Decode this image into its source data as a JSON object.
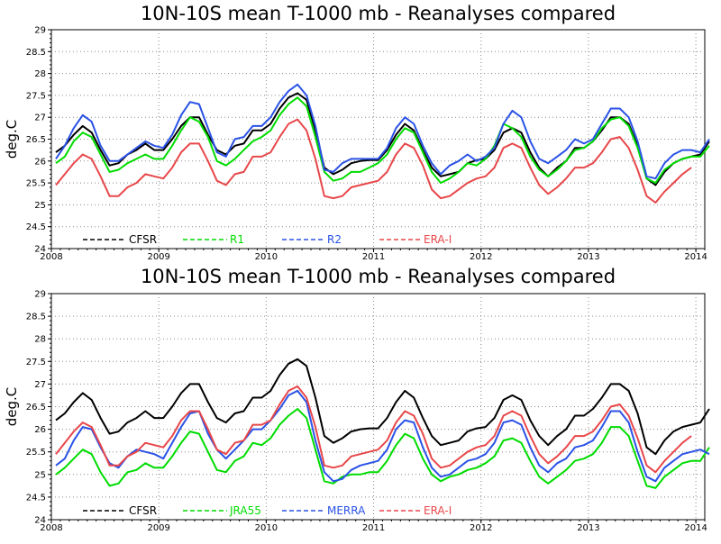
{
  "chart_data": [
    {
      "type": "line",
      "title": "10N-10S mean T-1000 mb - Reanalyses compared",
      "ylabel": "deg.C",
      "xlabel": "",
      "xlim": [
        2008,
        2014.083
      ],
      "ylim": [
        24,
        29
      ],
      "xticks": [
        "2008",
        "2009",
        "2010",
        "2011",
        "2012",
        "2013",
        "2014"
      ],
      "yticks": [
        "24",
        "24.5",
        "25",
        "25.5",
        "26",
        "26.5",
        "27",
        "27.5",
        "28",
        "28.5",
        "29"
      ],
      "grid": true,
      "legend_position": "bottom-left",
      "series": [
        {
          "name": "CFSR",
          "color": "#000000",
          "values": [
            26.2,
            26.35,
            26.6,
            26.8,
            26.65,
            26.25,
            25.9,
            25.95,
            26.15,
            26.25,
            26.4,
            26.25,
            26.25,
            26.5,
            26.8,
            27.0,
            27.0,
            26.6,
            26.25,
            26.15,
            26.35,
            26.4,
            26.7,
            26.7,
            26.85,
            27.2,
            27.45,
            27.55,
            27.4,
            26.7,
            25.85,
            25.7,
            25.8,
            25.95,
            26.0,
            26.02,
            26.02,
            26.25,
            26.6,
            26.85,
            26.7,
            26.25,
            25.85,
            25.65,
            25.7,
            25.75,
            25.95,
            26.02,
            26.05,
            26.25,
            26.65,
            26.75,
            26.65,
            26.2,
            25.85,
            25.65,
            25.85,
            26.0,
            26.3,
            26.3,
            26.45,
            26.7,
            27.0,
            27.0,
            26.85,
            26.35,
            25.6,
            25.45,
            25.75,
            25.95,
            26.05,
            26.1,
            26.15,
            26.45
          ]
        },
        {
          "name": "R1",
          "color": "#00dc00",
          "values": [
            25.95,
            26.1,
            26.45,
            26.65,
            26.55,
            26.15,
            25.75,
            25.8,
            25.95,
            26.05,
            26.15,
            26.05,
            26.05,
            26.35,
            26.7,
            27.0,
            26.9,
            26.55,
            26.0,
            25.9,
            26.05,
            26.25,
            26.45,
            26.55,
            26.7,
            27.05,
            27.3,
            27.45,
            27.25,
            26.55,
            25.75,
            25.55,
            25.6,
            25.75,
            25.75,
            25.85,
            25.95,
            26.15,
            26.5,
            26.75,
            26.65,
            26.2,
            25.75,
            25.5,
            25.6,
            25.75,
            25.95,
            25.9,
            26.05,
            26.35,
            26.85,
            26.75,
            26.55,
            26.1,
            25.8,
            25.65,
            25.8,
            26.0,
            26.25,
            26.3,
            26.45,
            26.75,
            26.95,
            27.0,
            26.8,
            26.3,
            25.6,
            25.5,
            25.8,
            25.95,
            26.05,
            26.1,
            26.1,
            26.35
          ]
        },
        {
          "name": "R2",
          "color": "#2a52e6",
          "values": [
            26.05,
            26.35,
            26.75,
            27.05,
            26.9,
            26.35,
            26.0,
            26.0,
            26.15,
            26.3,
            26.45,
            26.35,
            26.3,
            26.6,
            27.05,
            27.35,
            27.3,
            26.75,
            26.2,
            26.1,
            26.5,
            26.55,
            26.8,
            26.8,
            27.0,
            27.35,
            27.6,
            27.75,
            27.5,
            26.8,
            25.8,
            25.75,
            25.95,
            26.05,
            26.05,
            26.05,
            26.05,
            26.3,
            26.75,
            27.0,
            26.85,
            26.35,
            25.95,
            25.7,
            25.9,
            26.0,
            26.15,
            26.0,
            26.1,
            26.3,
            26.85,
            27.15,
            27.0,
            26.45,
            26.05,
            25.95,
            26.1,
            26.25,
            26.5,
            26.4,
            26.5,
            26.85,
            27.2,
            27.2,
            27.0,
            26.45,
            25.65,
            25.6,
            25.95,
            26.15,
            26.25,
            26.25,
            26.2,
            26.5
          ]
        },
        {
          "name": "ERA-I",
          "color": "#e8474a",
          "values": [
            25.45,
            25.7,
            25.95,
            26.15,
            26.05,
            25.65,
            25.2,
            25.2,
            25.4,
            25.5,
            25.7,
            25.65,
            25.6,
            25.85,
            26.2,
            26.4,
            26.4,
            26.0,
            25.55,
            25.45,
            25.7,
            25.75,
            26.1,
            26.1,
            26.2,
            26.55,
            26.85,
            26.95,
            26.7,
            26.05,
            25.2,
            25.15,
            25.2,
            25.4,
            25.45,
            25.5,
            25.55,
            25.75,
            26.15,
            26.4,
            26.3,
            25.9,
            25.35,
            25.15,
            25.2,
            25.35,
            25.5,
            25.6,
            25.65,
            25.85,
            26.3,
            26.4,
            26.3,
            25.85,
            25.45,
            25.25,
            25.4,
            25.6,
            25.85,
            25.85,
            25.95,
            26.2,
            26.5,
            26.55,
            26.3,
            25.8,
            25.2,
            25.05,
            25.3,
            25.5,
            25.7,
            25.85
          ]
        }
      ]
    },
    {
      "type": "line",
      "title": "10N-10S mean T-1000 mb - Reanalyses compared",
      "ylabel": "deg.C",
      "xlabel": "",
      "xlim": [
        2008,
        2014.083
      ],
      "ylim": [
        24,
        29
      ],
      "xticks": [
        "2008",
        "2009",
        "2010",
        "2011",
        "2012",
        "2013",
        "2014"
      ],
      "yticks": [
        "24",
        "24.5",
        "25",
        "25.5",
        "26",
        "26.5",
        "27",
        "27.5",
        "28",
        "28.5",
        "29"
      ],
      "grid": true,
      "legend_position": "bottom-left",
      "series": [
        {
          "name": "CFSR",
          "color": "#000000",
          "values": [
            26.2,
            26.35,
            26.6,
            26.8,
            26.65,
            26.25,
            25.9,
            25.95,
            26.15,
            26.25,
            26.4,
            26.25,
            26.25,
            26.5,
            26.8,
            27.0,
            27.0,
            26.6,
            26.25,
            26.15,
            26.35,
            26.4,
            26.7,
            26.7,
            26.85,
            27.2,
            27.45,
            27.55,
            27.4,
            26.7,
            25.85,
            25.7,
            25.8,
            25.95,
            26.0,
            26.02,
            26.02,
            26.25,
            26.6,
            26.85,
            26.7,
            26.25,
            25.85,
            25.65,
            25.7,
            25.75,
            25.95,
            26.02,
            26.05,
            26.25,
            26.65,
            26.75,
            26.65,
            26.2,
            25.85,
            25.65,
            25.85,
            26.0,
            26.3,
            26.3,
            26.45,
            26.7,
            27.0,
            27.0,
            26.85,
            26.35,
            25.6,
            25.45,
            25.75,
            25.95,
            26.05,
            26.1,
            26.15,
            26.45
          ]
        },
        {
          "name": "JRA55",
          "color": "#00dc00",
          "values": [
            25.0,
            25.15,
            25.35,
            25.55,
            25.45,
            25.05,
            24.75,
            24.8,
            25.05,
            25.1,
            25.25,
            25.15,
            25.15,
            25.4,
            25.7,
            25.95,
            25.9,
            25.5,
            25.1,
            25.05,
            25.3,
            25.4,
            25.7,
            25.65,
            25.8,
            26.1,
            26.3,
            26.45,
            26.25,
            25.55,
            24.85,
            24.8,
            24.95,
            25.0,
            25.0,
            25.05,
            25.05,
            25.3,
            25.65,
            25.9,
            25.8,
            25.35,
            25.0,
            24.85,
            24.95,
            25.0,
            25.1,
            25.15,
            25.25,
            25.4,
            25.75,
            25.8,
            25.7,
            25.3,
            24.95,
            24.8,
            24.95,
            25.1,
            25.3,
            25.35,
            25.45,
            25.7,
            26.05,
            26.05,
            25.85,
            25.3,
            24.75,
            24.7,
            24.95,
            25.1,
            25.25,
            25.3,
            25.3,
            25.6
          ]
        },
        {
          "name": "MERRA",
          "color": "#2a52e6",
          "values": [
            25.2,
            25.35,
            25.75,
            26.05,
            26.0,
            25.6,
            25.25,
            25.15,
            25.4,
            25.55,
            25.5,
            25.45,
            25.35,
            25.7,
            26.05,
            26.35,
            26.4,
            25.9,
            25.55,
            25.35,
            25.55,
            25.75,
            26.0,
            26.0,
            26.2,
            26.45,
            26.75,
            26.85,
            26.6,
            25.75,
            25.05,
            24.85,
            24.9,
            25.1,
            25.2,
            25.25,
            25.3,
            25.55,
            26.0,
            26.2,
            26.15,
            25.6,
            25.15,
            24.95,
            25.0,
            25.15,
            25.3,
            25.35,
            25.45,
            25.7,
            26.15,
            26.2,
            26.1,
            25.6,
            25.2,
            25.05,
            25.25,
            25.35,
            25.6,
            25.65,
            25.75,
            26.05,
            26.4,
            26.4,
            26.15,
            25.5,
            24.95,
            24.85,
            25.15,
            25.3,
            25.45,
            25.5,
            25.55,
            25.45
          ]
        },
        {
          "name": "ERA-I",
          "color": "#e8474a",
          "values": [
            25.45,
            25.7,
            25.95,
            26.15,
            26.05,
            25.65,
            25.2,
            25.2,
            25.4,
            25.5,
            25.7,
            25.65,
            25.6,
            25.85,
            26.2,
            26.4,
            26.4,
            26.0,
            25.55,
            25.45,
            25.7,
            25.75,
            26.1,
            26.1,
            26.2,
            26.55,
            26.85,
            26.95,
            26.7,
            26.05,
            25.2,
            25.15,
            25.2,
            25.4,
            25.45,
            25.5,
            25.55,
            25.75,
            26.15,
            26.4,
            26.3,
            25.9,
            25.35,
            25.15,
            25.2,
            25.35,
            25.5,
            25.6,
            25.65,
            25.85,
            26.3,
            26.4,
            26.3,
            25.85,
            25.45,
            25.25,
            25.4,
            25.6,
            25.85,
            25.85,
            25.95,
            26.2,
            26.5,
            26.55,
            26.3,
            25.8,
            25.2,
            25.05,
            25.3,
            25.5,
            25.7,
            25.85
          ]
        }
      ]
    }
  ]
}
